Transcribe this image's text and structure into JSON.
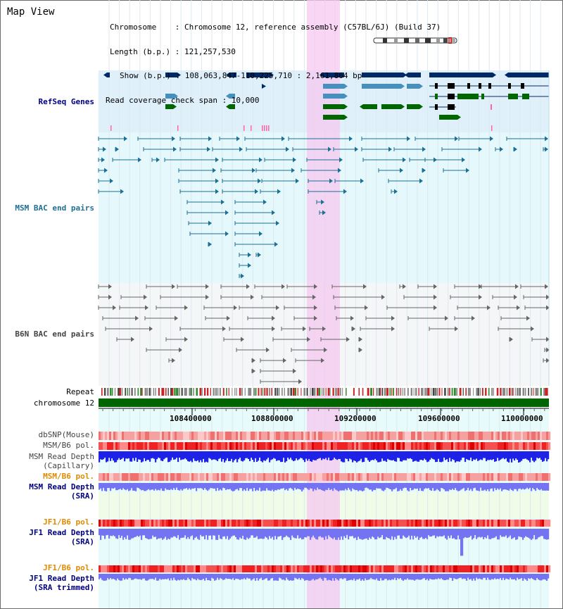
{
  "title": "Map View",
  "header": {
    "chromosome_label": "Chromosome    :",
    "chromosome_value": "Chromosome 12, reference assembly (C57BL/6J) (Build 37)",
    "length_label": "Length (b.p.) :",
    "length_value": "121,257,530",
    "show_label": "Show (b.p.) :",
    "show_value": "108,063,847-110,225,710 : 2,161,864 bp",
    "coverage_label": "Read coverage check span :",
    "coverage_value": "10,000"
  },
  "tracks": {
    "refseq": "RefSeq Genes",
    "msm_bac": "MSM BAC end pairs",
    "b6n_bac": "B6N BAC end pairs",
    "repeat": "Repeat",
    "chromosome": "chromosome 12",
    "dbsnp": "dbSNP(Mouse)",
    "msm_b6_pol": "MSM/B6 pol.",
    "msm_depth_cap_1": "MSM Read Depth",
    "msm_depth_cap_2": "(Capillary)",
    "msm_b6_pol_sra": "MSM/B6 pol.",
    "msm_depth_sra_1": "MSM Read Depth",
    "msm_depth_sra_2": "(SRA)",
    "jf1_b6_pol": "JF1/B6 pol.",
    "jf1_depth_sra_1": "JF1 Read Depth",
    "jf1_depth_sra_2": "(SRA)",
    "jf1_b6_pol_trim": "JF1/B6 pol.",
    "jf1_depth_trim_1": "JF1 Read Depth",
    "jf1_depth_trim_2": "(SRA trimmed)"
  },
  "axis": {
    "ticks": [
      "108400000",
      "108800000",
      "109200000",
      "109600000",
      "110000000"
    ]
  },
  "colors": {
    "refseq_bg": "#dff0fb",
    "bac_bg": "#e5f8fb",
    "b6n_bg": "#f4f6f8",
    "highlight": "#f6c8f0",
    "gene_dark": "#002a66",
    "gene_mid": "#4690c0",
    "gene_green": "#006600",
    "msm_line": "#1e6f94",
    "b6n_line": "#666666",
    "chrom_green": "#006400",
    "depth_blue_dark": "#1e22e6",
    "depth_blue_light": "#7474f2",
    "label_navy": "#000080",
    "label_orange": "#e08a00",
    "label_teal": "#1e6f94",
    "label_gray": "#444444"
  }
}
